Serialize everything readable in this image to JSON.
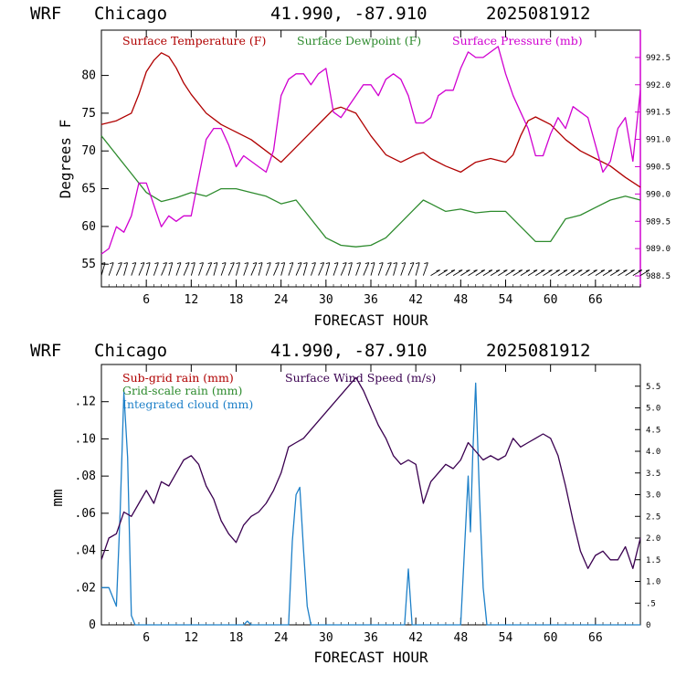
{
  "header": {
    "model": "WRF",
    "location": "Chicago",
    "coords": "41.990, -87.910",
    "run": "2025081912"
  },
  "colors": {
    "temperature": "#b00000",
    "dewpoint": "#2e8b2e",
    "pressure": "#d000d0",
    "subgrid": "#b00000",
    "gridscale": "#2e8b2e",
    "cloud": "#1e80c8",
    "wind": "#3a0050"
  },
  "chart_data": [
    {
      "type": "line",
      "xlabel": "FORECAST HOUR",
      "ylabel": "Degrees F",
      "xlim": [
        0,
        72
      ],
      "ylim": [
        52,
        86
      ],
      "y2lim": [
        988.3,
        993.0
      ],
      "x_ticks": [
        "6",
        "12",
        "18",
        "24",
        "30",
        "36",
        "42",
        "48",
        "54",
        "60",
        "66"
      ],
      "y_ticks": [
        "55",
        "60",
        "65",
        "70",
        "75",
        "80"
      ],
      "y2_ticks": [
        "988.5",
        "989.0",
        "989.5",
        "990.0",
        "990.5",
        "991.0",
        "991.5",
        "992.0",
        "992.5"
      ],
      "legend": [
        "Surface Temperature (F)",
        "Surface Dewpoint (F)",
        "Surface Pressure (mb)"
      ],
      "series": [
        {
          "name": "Surface Temperature (F)",
          "axis": "left",
          "x": [
            0,
            2,
            4,
            5,
            6,
            7,
            8,
            9,
            10,
            11,
            12,
            14,
            16,
            18,
            20,
            22,
            24,
            26,
            28,
            30,
            31,
            32,
            34,
            36,
            38,
            40,
            42,
            43,
            44,
            46,
            48,
            50,
            52,
            54,
            55,
            56,
            57,
            58,
            60,
            62,
            64,
            66,
            68,
            70,
            72
          ],
          "y": [
            73.5,
            74,
            75,
            77.5,
            80.5,
            82,
            83,
            82.5,
            81,
            79,
            77.5,
            75,
            73.5,
            72.5,
            71.5,
            70,
            68.5,
            70.5,
            72.5,
            74.5,
            75.5,
            75.8,
            75,
            72,
            69.5,
            68.5,
            69.5,
            69.8,
            69,
            68,
            67.2,
            68.5,
            69,
            68.5,
            69.5,
            72,
            74,
            74.5,
            73.5,
            71.5,
            70,
            69,
            68,
            66.5,
            65.2
          ]
        },
        {
          "name": "Surface Dewpoint (F)",
          "axis": "left",
          "x": [
            0,
            2,
            4,
            6,
            8,
            10,
            12,
            14,
            16,
            18,
            20,
            22,
            24,
            26,
            28,
            30,
            32,
            34,
            36,
            38,
            40,
            42,
            43,
            44,
            46,
            48,
            50,
            52,
            54,
            56,
            58,
            60,
            62,
            64,
            66,
            68,
            70,
            72
          ],
          "y": [
            72,
            69.5,
            67,
            64.5,
            63.3,
            63.8,
            64.5,
            64,
            65,
            65,
            64.5,
            64,
            63,
            63.5,
            61,
            58.5,
            57.5,
            57.3,
            57.5,
            58.5,
            60.5,
            62.5,
            63.5,
            63,
            62,
            62.3,
            61.8,
            62,
            62,
            60,
            58,
            58,
            61,
            61.5,
            62.5,
            63.5,
            64,
            63.5
          ]
        },
        {
          "name": "Surface Pressure (mb)",
          "axis": "right",
          "x": [
            0,
            1,
            2,
            3,
            4,
            5,
            6,
            7,
            8,
            9,
            10,
            11,
            12,
            13,
            14,
            15,
            16,
            17,
            18,
            19,
            20,
            21,
            22,
            23,
            24,
            25,
            26,
            27,
            28,
            29,
            30,
            31,
            32,
            33,
            34,
            35,
            36,
            37,
            38,
            39,
            40,
            41,
            42,
            43,
            44,
            45,
            46,
            47,
            48,
            49,
            50,
            51,
            52,
            53,
            54,
            55,
            56,
            57,
            58,
            59,
            60,
            61,
            62,
            63,
            64,
            65,
            66,
            67,
            68,
            69,
            70,
            71,
            72
          ],
          "y": [
            988.9,
            989.0,
            989.4,
            989.3,
            989.6,
            990.2,
            990.2,
            989.8,
            989.4,
            989.6,
            989.5,
            989.6,
            989.6,
            990.3,
            991.0,
            991.2,
            991.2,
            990.9,
            990.5,
            990.7,
            990.6,
            990.5,
            990.4,
            990.8,
            991.8,
            992.1,
            992.2,
            992.2,
            992.0,
            992.2,
            992.3,
            991.5,
            991.4,
            991.6,
            991.8,
            992.0,
            992.0,
            991.8,
            992.1,
            992.2,
            992.1,
            991.8,
            991.3,
            991.3,
            991.4,
            991.8,
            991.9,
            991.9,
            992.3,
            992.6,
            992.5,
            992.5,
            992.6,
            992.7,
            992.2,
            991.8,
            991.5,
            991.2,
            990.7,
            990.7,
            991.1,
            991.4,
            991.2,
            991.6,
            991.5,
            991.4,
            990.9,
            990.4,
            990.6,
            991.2,
            991.4,
            990.6,
            991.9
          ]
        }
      ],
      "wind_barbs": {
        "start": 0,
        "end": 72,
        "step": 1
      }
    },
    {
      "type": "line",
      "xlabel": "FORECAST HOUR",
      "ylabel": "mm",
      "xlim": [
        0,
        72
      ],
      "ylim": [
        0,
        0.14
      ],
      "y2lim": [
        0,
        6.0
      ],
      "x_ticks": [
        "6",
        "12",
        "18",
        "24",
        "30",
        "36",
        "42",
        "48",
        "54",
        "60",
        "66"
      ],
      "y_ticks": [
        "0",
        ".02",
        ".04",
        ".06",
        ".08",
        ".10",
        ".12"
      ],
      "y2_ticks": [
        "0",
        ".5",
        "1.0",
        "1.5",
        "2.0",
        "2.5",
        "3.0",
        "3.5",
        "4.0",
        "4.5",
        "5.0",
        "5.5"
      ],
      "legend": [
        "Sub-grid rain (mm)",
        "Grid-scale rain (mm)",
        "Integrated cloud (mm)",
        "Surface Wind Speed (m/s)"
      ],
      "series": [
        {
          "name": "Integrated cloud (mm)",
          "axis": "left",
          "x": [
            0,
            1,
            2,
            2.5,
            3,
            3.5,
            4,
            4.5,
            5,
            19,
            19.5,
            20,
            25,
            25.5,
            26,
            26.5,
            27,
            27.5,
            28,
            40.5,
            41,
            41.5,
            48,
            48.5,
            49,
            49.3,
            49.6,
            50,
            50.5,
            51,
            51.5,
            72
          ],
          "y": [
            0.02,
            0.02,
            0.01,
            0.06,
            0.125,
            0.09,
            0.005,
            0,
            0,
            0,
            0.002,
            0,
            0,
            0.045,
            0.07,
            0.074,
            0.04,
            0.01,
            0,
            0,
            0.03,
            0,
            0,
            0.04,
            0.08,
            0.05,
            0.09,
            0.13,
            0.07,
            0.02,
            0,
            0
          ]
        },
        {
          "name": "Surface Wind Speed (m/s)",
          "axis": "right",
          "x": [
            0,
            1,
            2,
            3,
            4,
            5,
            6,
            7,
            8,
            9,
            10,
            11,
            12,
            13,
            14,
            15,
            16,
            17,
            18,
            19,
            20,
            21,
            22,
            23,
            24,
            25,
            26,
            27,
            28,
            29,
            30,
            31,
            32,
            33,
            34,
            35,
            36,
            37,
            38,
            39,
            40,
            41,
            42,
            43,
            44,
            45,
            46,
            47,
            48,
            49,
            50,
            51,
            52,
            53,
            54,
            55,
            56,
            57,
            58,
            59,
            60,
            61,
            62,
            63,
            64,
            65,
            66,
            67,
            68,
            69,
            70,
            71,
            72
          ],
          "y": [
            1.5,
            2.0,
            2.1,
            2.6,
            2.5,
            2.8,
            3.1,
            2.8,
            3.3,
            3.2,
            3.5,
            3.8,
            3.9,
            3.7,
            3.2,
            2.9,
            2.4,
            2.1,
            1.9,
            2.3,
            2.5,
            2.6,
            2.8,
            3.1,
            3.5,
            4.1,
            4.2,
            4.3,
            4.5,
            4.7,
            4.9,
            5.1,
            5.3,
            5.5,
            5.7,
            5.4,
            5.0,
            4.6,
            4.3,
            3.9,
            3.7,
            3.8,
            3.7,
            2.8,
            3.3,
            3.5,
            3.7,
            3.6,
            3.8,
            4.2,
            4.0,
            3.8,
            3.9,
            3.8,
            3.9,
            4.3,
            4.1,
            4.2,
            4.3,
            4.4,
            4.3,
            3.9,
            3.2,
            2.4,
            1.7,
            1.3,
            1.6,
            1.7,
            1.5,
            1.5,
            1.8,
            1.3,
            2.0
          ]
        }
      ]
    }
  ]
}
